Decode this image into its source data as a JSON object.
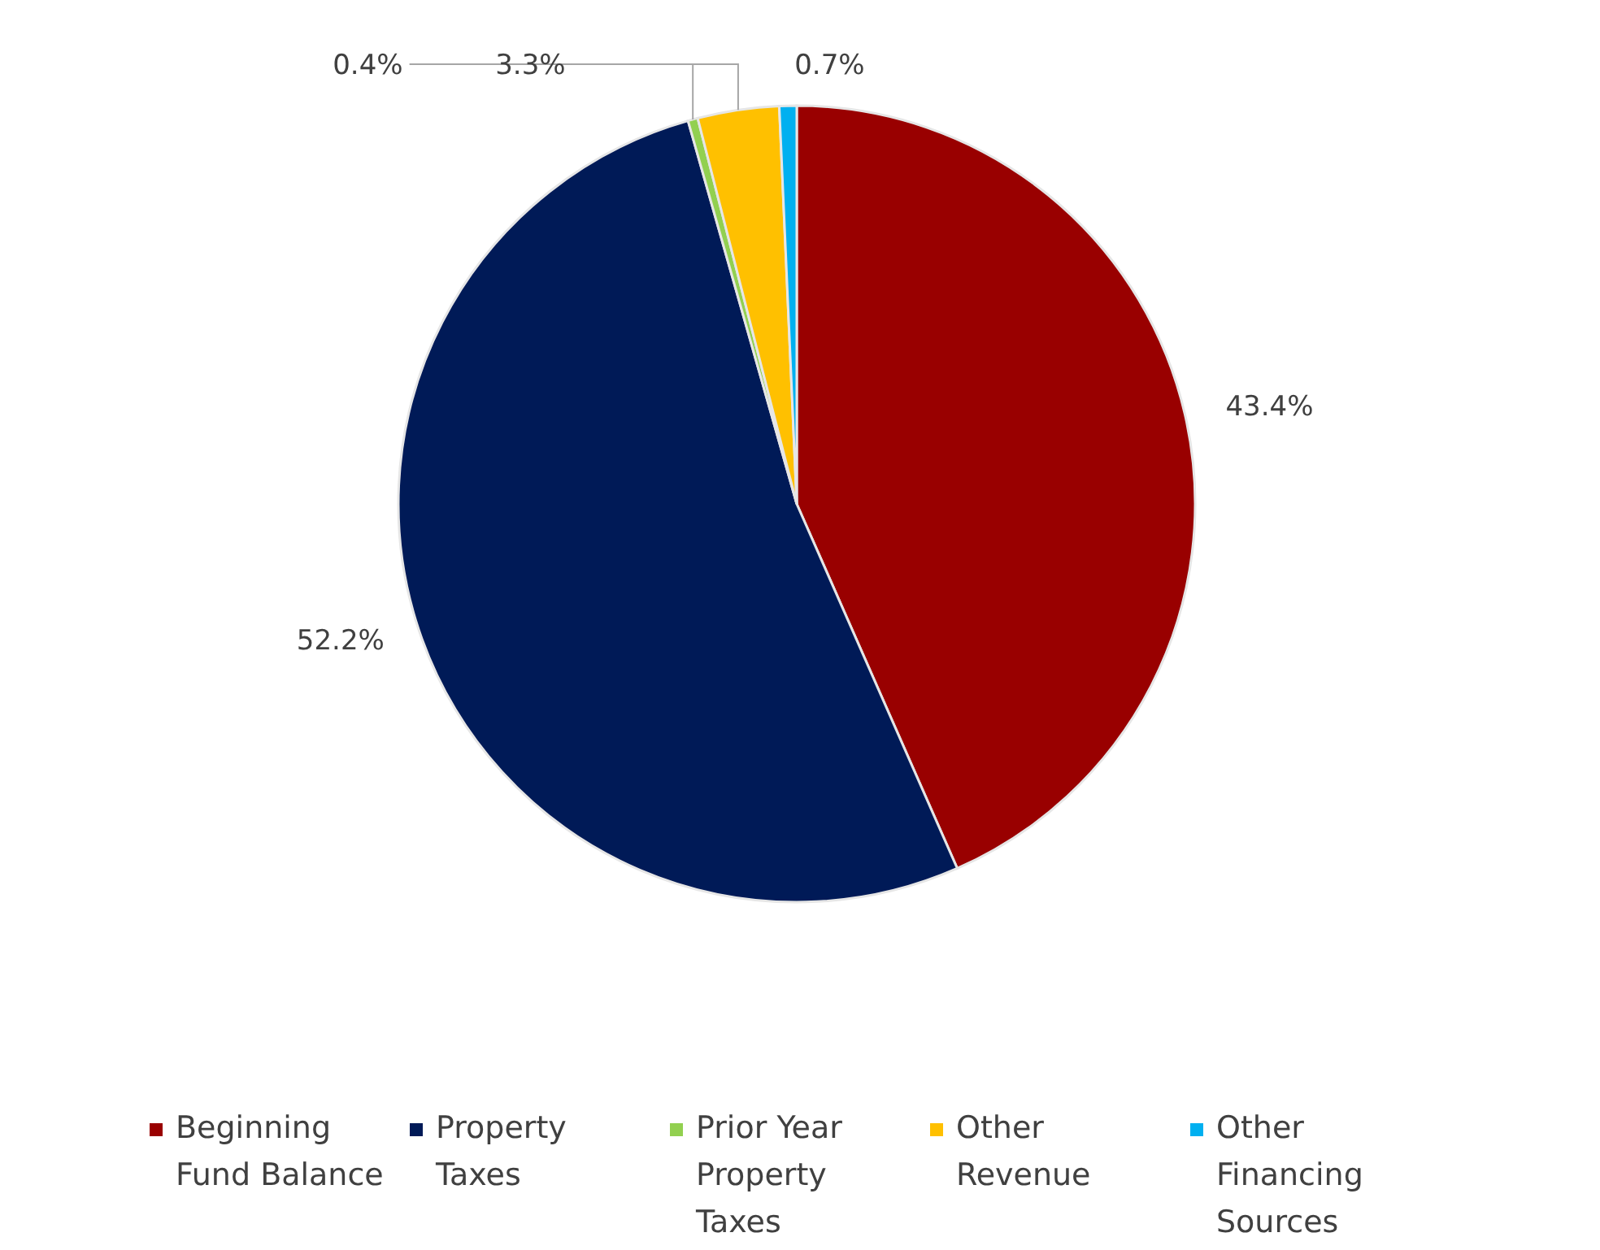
{
  "chart_data": {
    "type": "pie",
    "categories": [
      "Beginning Fund Balance",
      "Property Taxes",
      "Prior Year Property Taxes",
      "Other Revenue",
      "Other Financing Sources"
    ],
    "values": [
      43.4,
      52.2,
      0.4,
      3.3,
      0.7
    ],
    "colors": [
      "#990000",
      "#001a57",
      "#92d050",
      "#ffc000",
      "#00b0f0"
    ],
    "value_labels": [
      "43.4%",
      "52.2%",
      "0.4%",
      "3.3%",
      "0.7%"
    ],
    "legend": "bottom"
  }
}
